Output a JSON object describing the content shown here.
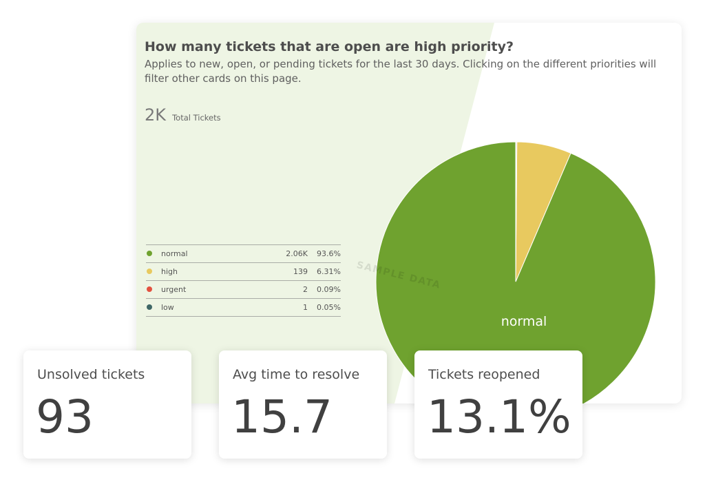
{
  "card": {
    "title": "How many tickets that are open are high priority?",
    "description": "Applies to new, open, or pending tickets for the last 30 days. Clicking on the different priorities will filter other cards on this page.",
    "total_value": "2K",
    "total_label": "Total Tickets",
    "watermark": "SAMPLE DATA",
    "legend": [
      {
        "name": "normal",
        "count": "2.06K",
        "percent": "93.6%",
        "color": "#6fa22f"
      },
      {
        "name": "high",
        "count": "139",
        "percent": "6.31%",
        "color": "#e8c95f"
      },
      {
        "name": "urgent",
        "count": "2",
        "percent": "0.09%",
        "color": "#e3513f"
      },
      {
        "name": "low",
        "count": "1",
        "percent": "0.05%",
        "color": "#3f6766"
      }
    ]
  },
  "chart_data": {
    "type": "pie",
    "title": "How many tickets that are open are high priority?",
    "categories": [
      "normal",
      "high",
      "urgent",
      "low"
    ],
    "values": [
      2060,
      139,
      2,
      1
    ],
    "percentages": [
      93.6,
      6.31,
      0.09,
      0.05
    ],
    "colors": [
      "#6fa22f",
      "#e8c95f",
      "#e3513f",
      "#3f6766"
    ],
    "slice_labels": [
      "normal"
    ],
    "legend_position": "left"
  },
  "stats": [
    {
      "label": "Unsolved tickets",
      "value": "93"
    },
    {
      "label": "Avg time to resolve",
      "value": "15.7"
    },
    {
      "label": "Tickets reopened",
      "value": "13.1%"
    }
  ]
}
